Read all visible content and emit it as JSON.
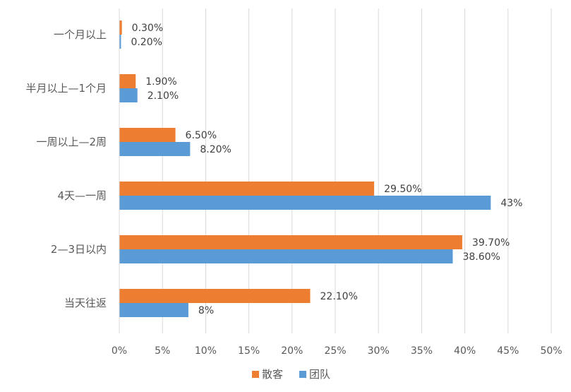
{
  "chart_data": {
    "type": "bar",
    "orientation": "horizontal",
    "title": "",
    "xlabel": "",
    "ylabel": "",
    "xlim": [
      0,
      50
    ],
    "xticks": [
      "0%",
      "5%",
      "10%",
      "15%",
      "20%",
      "25%",
      "30%",
      "35%",
      "40%",
      "45%",
      "50%"
    ],
    "grid": true,
    "legend_position": "bottom",
    "categories": [
      "一个月以上",
      "半月以上—1个月",
      "一周以上—2周",
      "4天—一周",
      "2—3日以内",
      "当天往返"
    ],
    "series": [
      {
        "name": "散客",
        "color": "#ED7D31",
        "values": [
          0.3,
          1.9,
          6.5,
          29.5,
          39.7,
          22.1
        ],
        "labels": [
          "0.30%",
          "1.90%",
          "6.50%",
          "29.50%",
          "39.70%",
          "22.10%"
        ]
      },
      {
        "name": "团队",
        "color": "#5B9BD5",
        "values": [
          0.2,
          2.1,
          8.2,
          43,
          38.6,
          8
        ],
        "labels": [
          "0.20%",
          "2.10%",
          "8.20%",
          "43%",
          "38.60%",
          "8%"
        ]
      }
    ]
  }
}
